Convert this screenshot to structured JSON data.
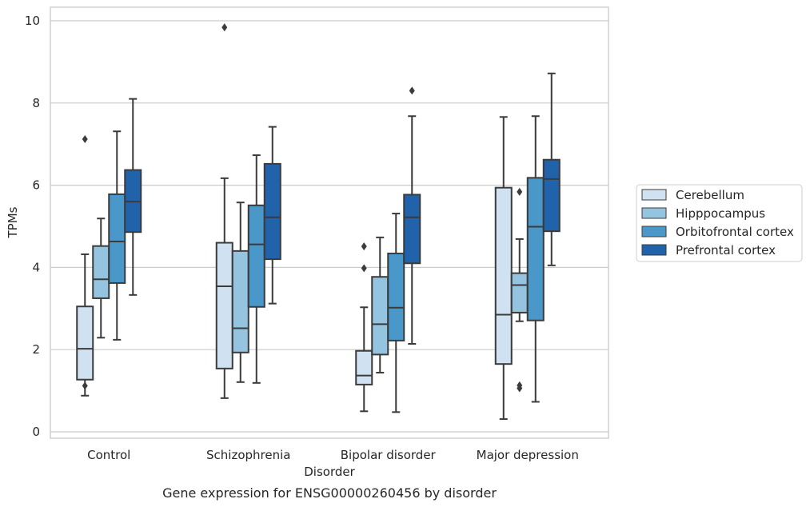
{
  "caption": "Gene expression for ENSG00000260456 by disorder",
  "chart_data": {
    "type": "box",
    "xlabel": "Disorder",
    "ylabel": "TPMs",
    "ylim": [
      -0.15,
      10.3
    ],
    "yticks": [
      0,
      2,
      4,
      6,
      8,
      10
    ],
    "grid": "horizontal",
    "legend_position": "right",
    "categories": [
      "Control",
      "Schizophrenia",
      "Bipolar disorder",
      "Major depression"
    ],
    "series": [
      {
        "name": "Cerebellum",
        "color": "#d0e1f2",
        "boxes": [
          {
            "whisker_low": 0.88,
            "q1": 1.27,
            "median": 2.02,
            "q3": 3.05,
            "whisker_high": 4.32,
            "outliers": [
              7.12,
              1.12
            ]
          },
          {
            "whisker_low": 0.82,
            "q1": 1.54,
            "median": 3.54,
            "q3": 4.6,
            "whisker_high": 6.17,
            "outliers": [
              9.84
            ]
          },
          {
            "whisker_low": 0.5,
            "q1": 1.15,
            "median": 1.37,
            "q3": 1.97,
            "whisker_high": 3.03,
            "outliers": [
              4.51,
              3.98
            ]
          },
          {
            "whisker_low": 0.31,
            "q1": 1.65,
            "median": 2.85,
            "q3": 5.94,
            "whisker_high": 7.66,
            "outliers": []
          }
        ]
      },
      {
        "name": "Hipppocampus",
        "color": "#94c4df",
        "boxes": [
          {
            "whisker_low": 2.29,
            "q1": 3.25,
            "median": 3.71,
            "q3": 4.52,
            "whisker_high": 5.19,
            "outliers": []
          },
          {
            "whisker_low": 1.21,
            "q1": 1.93,
            "median": 2.52,
            "q3": 4.4,
            "whisker_high": 5.58,
            "outliers": []
          },
          {
            "whisker_low": 1.44,
            "q1": 1.88,
            "median": 2.62,
            "q3": 3.77,
            "whisker_high": 4.73,
            "outliers": []
          },
          {
            "whisker_low": 2.69,
            "q1": 2.9,
            "median": 3.57,
            "q3": 3.86,
            "whisker_high": 4.69,
            "outliers": [
              5.84,
              1.13,
              1.06
            ]
          }
        ]
      },
      {
        "name": "Orbitofrontal cortex",
        "color": "#4a98c9",
        "boxes": [
          {
            "whisker_low": 2.24,
            "q1": 3.62,
            "median": 4.63,
            "q3": 5.78,
            "whisker_high": 7.31,
            "outliers": []
          },
          {
            "whisker_low": 1.19,
            "q1": 3.04,
            "median": 4.56,
            "q3": 5.51,
            "whisker_high": 6.73,
            "outliers": []
          },
          {
            "whisker_low": 0.48,
            "q1": 2.22,
            "median": 3.02,
            "q3": 4.34,
            "whisker_high": 5.31,
            "outliers": []
          },
          {
            "whisker_low": 0.73,
            "q1": 2.71,
            "median": 4.99,
            "q3": 6.18,
            "whisker_high": 7.68,
            "outliers": []
          }
        ]
      },
      {
        "name": "Prefrontal cortex",
        "color": "#2163aa",
        "boxes": [
          {
            "whisker_low": 3.33,
            "q1": 4.86,
            "median": 5.6,
            "q3": 6.37,
            "whisker_high": 8.1,
            "outliers": []
          },
          {
            "whisker_low": 3.12,
            "q1": 4.2,
            "median": 5.22,
            "q3": 6.52,
            "whisker_high": 7.42,
            "outliers": []
          },
          {
            "whisker_low": 2.14,
            "q1": 4.1,
            "median": 5.22,
            "q3": 5.77,
            "whisker_high": 7.68,
            "outliers": [
              8.3
            ]
          },
          {
            "whisker_low": 4.05,
            "q1": 4.88,
            "median": 6.15,
            "q3": 6.62,
            "whisker_high": 8.72,
            "outliers": []
          }
        ]
      }
    ]
  }
}
